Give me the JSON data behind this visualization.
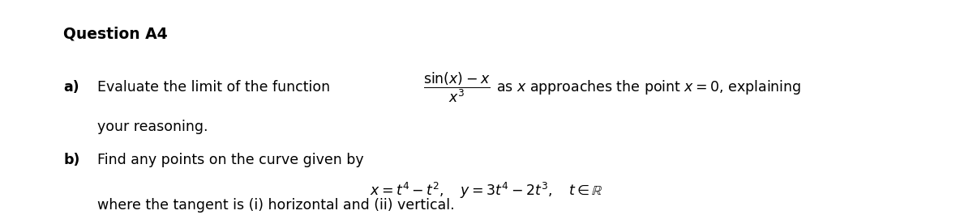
{
  "title": "Question A4",
  "background_color": "#ffffff",
  "text_color": "#000000",
  "title_fontsize": 13.5,
  "body_fontsize": 12.5,
  "label_fontsize": 12.5,
  "math_fontsize": 12.5
}
